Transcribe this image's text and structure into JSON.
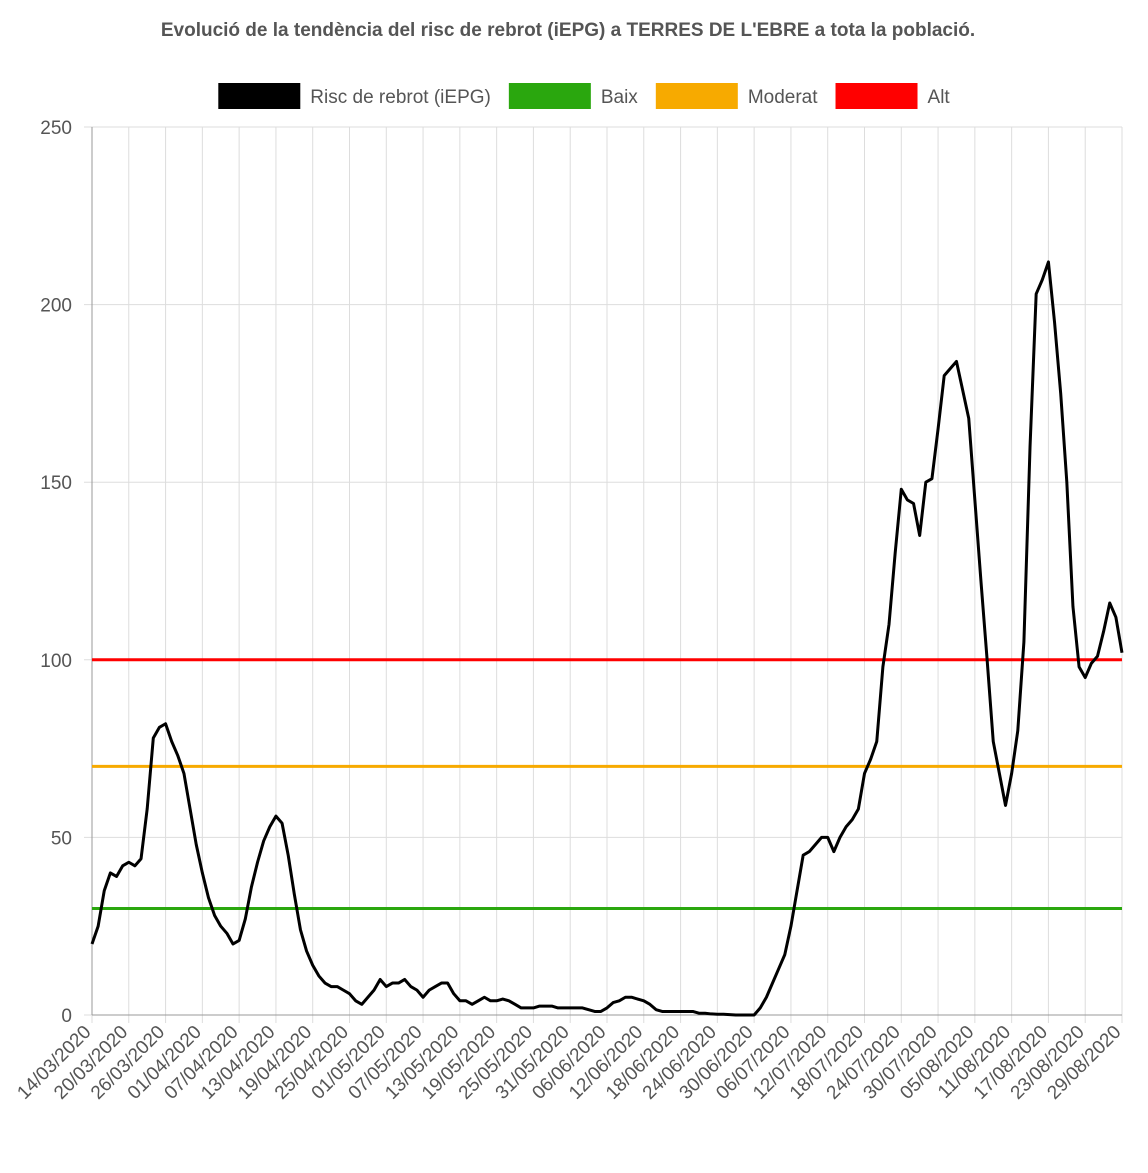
{
  "chart_data": {
    "type": "line",
    "title": "Evolució de la tendència del risc de rebrot (iEPG) a TERRES DE L'EBRE a tota la població.",
    "categories": [
      "14/03/2020",
      null,
      null,
      null,
      null,
      null,
      "20/03/2020",
      null,
      null,
      null,
      null,
      null,
      "26/03/2020",
      null,
      null,
      null,
      null,
      null,
      "01/04/2020",
      null,
      null,
      null,
      null,
      null,
      "07/04/2020",
      null,
      null,
      null,
      null,
      null,
      "13/04/2020",
      null,
      null,
      null,
      null,
      null,
      "19/04/2020",
      null,
      null,
      null,
      null,
      null,
      "25/04/2020",
      null,
      null,
      null,
      null,
      null,
      "01/05/2020",
      null,
      null,
      null,
      null,
      null,
      "07/05/2020",
      null,
      null,
      null,
      null,
      null,
      "13/05/2020",
      null,
      null,
      null,
      null,
      null,
      "19/05/2020",
      null,
      null,
      null,
      null,
      null,
      "25/05/2020",
      null,
      null,
      null,
      null,
      null,
      "31/05/2020",
      null,
      null,
      null,
      null,
      null,
      "06/06/2020",
      null,
      null,
      null,
      null,
      null,
      "12/06/2020",
      null,
      null,
      null,
      null,
      null,
      "18/06/2020",
      null,
      null,
      null,
      null,
      null,
      "24/06/2020",
      null,
      null,
      null,
      null,
      null,
      "30/06/2020",
      null,
      null,
      null,
      null,
      null,
      "06/07/2020",
      null,
      null,
      null,
      null,
      null,
      "12/07/2020",
      null,
      null,
      null,
      null,
      null,
      "18/07/2020",
      null,
      null,
      null,
      null,
      null,
      "24/07/2020",
      null,
      null,
      null,
      null,
      null,
      "30/07/2020",
      null,
      null,
      null,
      null,
      null,
      "05/08/2020",
      null,
      null,
      null,
      null,
      null,
      "11/08/2020",
      null,
      null,
      null,
      null,
      null,
      "17/08/2020",
      null,
      null,
      null,
      null,
      null,
      "23/08/2020",
      null,
      null,
      null,
      null,
      null,
      "29/08/2020"
    ],
    "series": [
      {
        "name": "Risc de rebrot (iEPG)",
        "color": "#000000",
        "values": [
          20,
          25,
          35,
          40,
          39,
          42,
          43,
          42,
          44,
          58,
          78,
          81,
          82,
          77,
          73,
          68,
          58,
          48,
          40,
          33,
          28,
          25,
          23,
          20,
          21,
          27,
          36,
          43,
          49,
          53,
          56,
          54,
          45,
          34,
          24,
          18,
          14,
          11,
          9,
          8,
          8,
          7,
          6,
          4,
          3,
          5,
          7,
          10,
          8,
          9,
          9,
          10,
          8,
          7,
          5,
          7,
          8,
          9,
          9,
          6,
          4,
          4,
          3,
          4,
          5,
          4,
          4,
          4.5,
          4,
          3,
          2,
          2,
          2,
          2.5,
          2.5,
          2.5,
          2,
          2,
          2,
          2,
          2,
          1.5,
          1,
          1,
          2,
          3.5,
          4,
          5,
          5,
          4.5,
          4,
          3,
          1.5,
          1,
          1,
          1,
          1,
          1,
          1,
          0.5,
          0.5,
          0.3,
          0.2,
          0.2,
          0.1,
          0,
          0,
          0,
          0,
          2,
          5,
          9,
          13,
          17,
          25,
          35,
          45,
          46,
          48,
          50,
          50,
          46,
          50,
          53,
          55,
          58,
          68,
          72,
          77,
          98,
          110,
          130,
          148,
          145,
          144,
          135,
          150,
          151,
          165,
          180,
          182,
          184,
          176,
          168,
          145,
          122,
          100,
          77,
          68,
          59,
          68,
          80,
          105,
          160,
          203,
          207,
          212,
          195,
          175,
          150,
          115,
          98,
          95,
          99,
          101,
          108,
          116,
          112,
          102
        ]
      }
    ],
    "reference_lines": [
      {
        "name": "Baix",
        "color": "#2aa70e",
        "value": 30
      },
      {
        "name": "Moderat",
        "color": "#f7aa00",
        "value": 70
      },
      {
        "name": "Alt",
        "color": "#ff0000",
        "value": 100
      }
    ],
    "ylim": [
      0,
      250
    ],
    "yticks": [
      0,
      50,
      100,
      150,
      200,
      250
    ],
    "grid": true
  }
}
